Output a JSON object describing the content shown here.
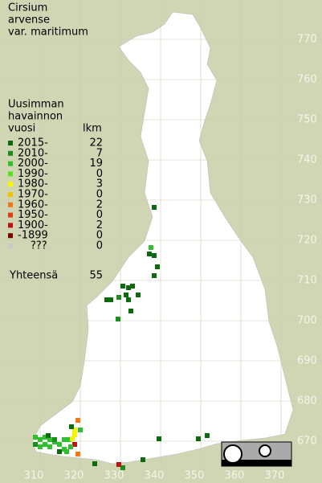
{
  "title": [
    "Cirsium",
    "arvense",
    "var. maritimum"
  ],
  "legend": {
    "heading": [
      "Uusimman",
      "havainnon",
      "vuosi"
    ],
    "count_heading": "lkm",
    "rows": [
      {
        "label": "2015-",
        "count": 22,
        "color": "#0b6a0b"
      },
      {
        "label": "2010-",
        "count": 7,
        "color": "#1c8c1c"
      },
      {
        "label": "2000-",
        "count": 19,
        "color": "#2fbf2f"
      },
      {
        "label": "1990-",
        "count": 0,
        "color": "#55e020"
      },
      {
        "label": "1980-",
        "count": 3,
        "color": "#f6f600"
      },
      {
        "label": "1970-",
        "count": 0,
        "color": "#f2c400"
      },
      {
        "label": "1960-",
        "count": 2,
        "color": "#f07818"
      },
      {
        "label": "1950-",
        "count": 0,
        "color": "#dc4010"
      },
      {
        "label": "1900-",
        "count": 2,
        "color": "#c01010"
      },
      {
        "label": "-1899",
        "count": 0,
        "color": "#7a0000"
      },
      {
        "label": "???",
        "count": 0,
        "color": "#c8c8c8"
      }
    ],
    "total": {
      "label": "Yhteensä",
      "count": 55
    }
  },
  "grid": {
    "y_labels": [
      770,
      760,
      750,
      740,
      730,
      720,
      710,
      700,
      690,
      680,
      670
    ],
    "x_labels": [
      310,
      320,
      330,
      340,
      350,
      360,
      370
    ]
  }
}
